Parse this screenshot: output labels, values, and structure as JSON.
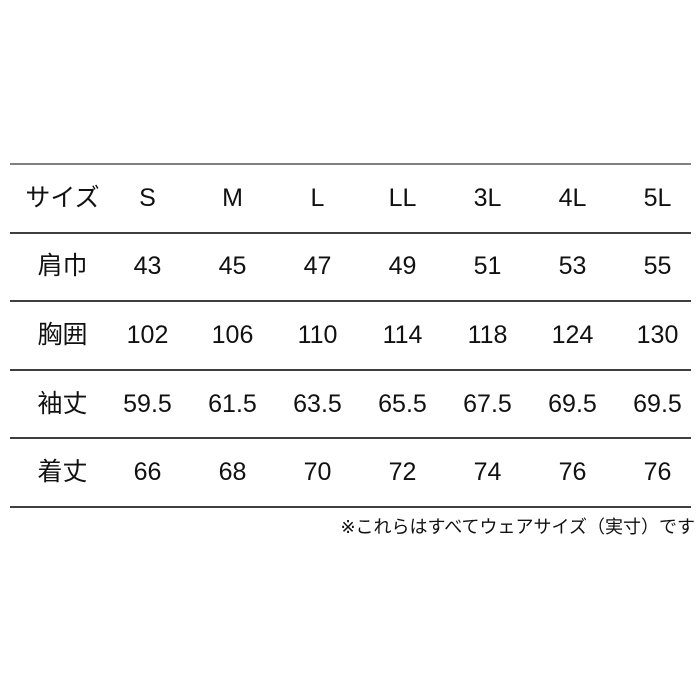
{
  "chart_data": {
    "type": "table",
    "title": "",
    "columns": [
      "サイズ",
      "S",
      "M",
      "L",
      "LL",
      "3L",
      "4L",
      "5L"
    ],
    "rows": [
      {
        "label": "肩巾",
        "values": [
          "43",
          "45",
          "47",
          "49",
          "51",
          "53",
          "55"
        ]
      },
      {
        "label": "胸囲",
        "values": [
          "102",
          "106",
          "110",
          "114",
          "118",
          "124",
          "130"
        ]
      },
      {
        "label": "袖丈",
        "values": [
          "59.5",
          "61.5",
          "63.5",
          "65.5",
          "67.5",
          "69.5",
          "69.5"
        ]
      },
      {
        "label": "着丈",
        "values": [
          "66",
          "68",
          "70",
          "72",
          "74",
          "76",
          "76"
        ]
      }
    ],
    "footnote": "※これらはすべてウェアサイズ（実寸）です",
    "layout_hints": {
      "grid": "horizontal-rules-only",
      "header_position": "top-row",
      "footnote_align": "right"
    }
  },
  "colors": {
    "background": "#ffffff",
    "text": "#111111",
    "rule_top": "#808080",
    "rule": "#3f3f3f"
  }
}
